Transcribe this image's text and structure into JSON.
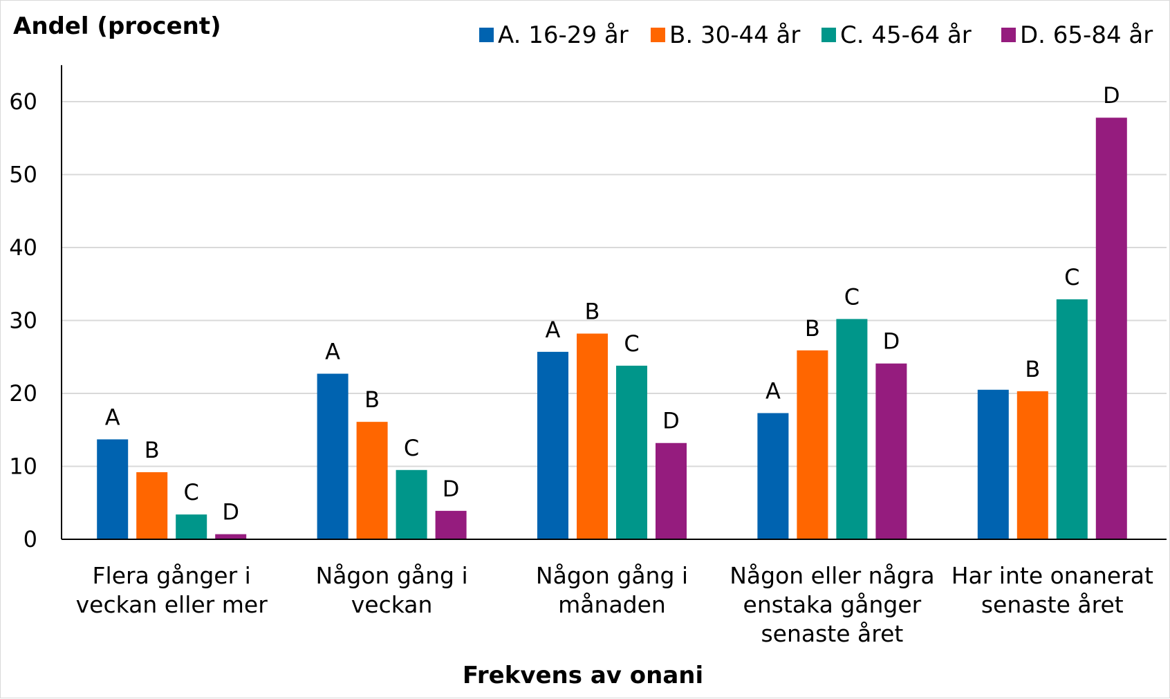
{
  "chart_data": {
    "type": "bar",
    "ylabel": "Andel (procent)",
    "xlabel": "Frekvens av onani",
    "ylim": [
      0,
      65
    ],
    "yticks": [
      0,
      10,
      20,
      30,
      40,
      50,
      60
    ],
    "grid": true,
    "legend_position": "top-right",
    "categories": [
      [
        "Flera gånger i",
        "veckan eller mer"
      ],
      [
        "Någon gång i",
        "veckan"
      ],
      [
        "Någon gång i",
        "månaden"
      ],
      [
        "Någon eller några",
        "enstaka gånger",
        "senaste året"
      ],
      [
        "Har inte onanerat",
        "senaste året"
      ]
    ],
    "series": [
      {
        "name": "A. 16-29 år",
        "color": "#0063b0",
        "values": [
          13.7,
          22.7,
          25.7,
          17.3,
          20.5
        ],
        "labels": [
          "A",
          "A",
          "A",
          "A",
          ""
        ]
      },
      {
        "name": "B. 30-44 år",
        "color": "#ff6600",
        "values": [
          9.2,
          16.1,
          28.2,
          25.9,
          20.3
        ],
        "labels": [
          "B",
          "B",
          "B",
          "B",
          "B"
        ]
      },
      {
        "name": "C. 45-64 år",
        "color": "#00968a",
        "values": [
          3.4,
          9.5,
          23.8,
          30.2,
          32.9
        ],
        "labels": [
          "C",
          "C",
          "C",
          "C",
          "C"
        ]
      },
      {
        "name": "D. 65-84 år",
        "color": "#951c7e",
        "values": [
          0.7,
          3.9,
          13.2,
          24.1,
          57.8
        ],
        "labels": [
          "D",
          "D",
          "D",
          "D",
          "D"
        ]
      }
    ]
  }
}
